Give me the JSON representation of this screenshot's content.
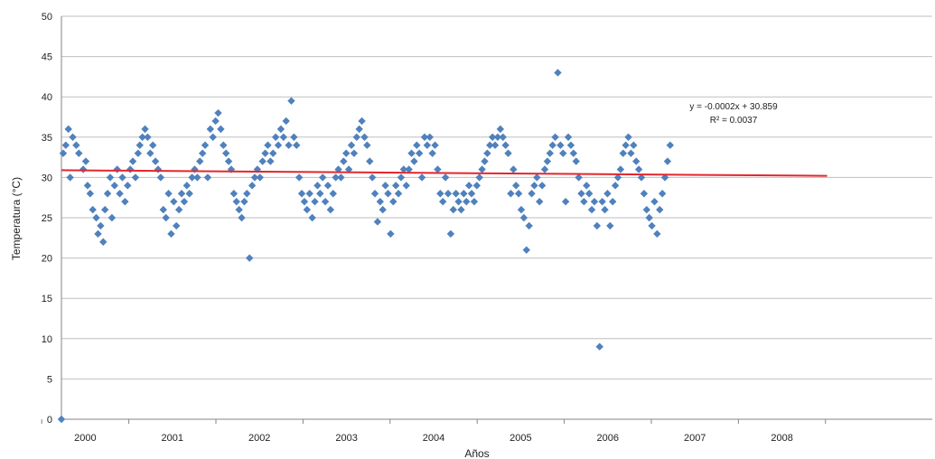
{
  "chart_data": {
    "type": "scatter",
    "title": "",
    "xlabel": "Años",
    "ylabel": "Temperatura (°C)",
    "ylim": [
      0,
      50
    ],
    "y_ticks": [
      0,
      5,
      10,
      15,
      20,
      25,
      30,
      35,
      40,
      45,
      50
    ],
    "x_tick_labels": [
      "2000",
      "2001",
      "2002",
      "2003",
      "2004",
      "2005",
      "2006",
      "2007",
      "2008"
    ],
    "x_range": [
      1999.0,
      2009.0
    ],
    "grid": "horizontal",
    "colors": {
      "points": "#4f81bd",
      "trend": "#e3262d",
      "grid": "#bfbfbf",
      "axis": "#868686"
    },
    "trendline": {
      "equation_text": "y = -0.0002x + 30.859",
      "r2_text": "R² = 0.0037",
      "start": [
        1999.0,
        30.9
      ],
      "end": [
        2008.0,
        30.2
      ]
    },
    "series": [
      {
        "points": [
          [
            1999.0,
            0
          ],
          [
            1999.02,
            33
          ],
          [
            1999.05,
            34
          ],
          [
            1999.08,
            36
          ],
          [
            1999.1,
            30
          ],
          [
            1999.13,
            35
          ],
          [
            1999.17,
            34
          ],
          [
            1999.2,
            33
          ],
          [
            1999.25,
            31
          ],
          [
            1999.28,
            32
          ],
          [
            1999.3,
            29
          ],
          [
            1999.33,
            28
          ],
          [
            1999.36,
            26
          ],
          [
            1999.4,
            25
          ],
          [
            1999.42,
            23
          ],
          [
            1999.45,
            24
          ],
          [
            1999.48,
            22
          ],
          [
            1999.5,
            26
          ],
          [
            1999.53,
            28
          ],
          [
            1999.56,
            30
          ],
          [
            1999.58,
            25
          ],
          [
            1999.61,
            29
          ],
          [
            1999.64,
            31
          ],
          [
            1999.67,
            28
          ],
          [
            1999.7,
            30
          ],
          [
            1999.73,
            27
          ],
          [
            1999.76,
            29
          ],
          [
            1999.79,
            31
          ],
          [
            1999.82,
            32
          ],
          [
            1999.85,
            30
          ],
          [
            1999.88,
            33
          ],
          [
            1999.9,
            34
          ],
          [
            1999.93,
            35
          ],
          [
            1999.96,
            36
          ],
          [
            1999.99,
            35
          ],
          [
            2000.02,
            33
          ],
          [
            2000.05,
            34
          ],
          [
            2000.08,
            32
          ],
          [
            2000.11,
            31
          ],
          [
            2000.14,
            30
          ],
          [
            2000.17,
            26
          ],
          [
            2000.2,
            25
          ],
          [
            2000.23,
            28
          ],
          [
            2000.26,
            23
          ],
          [
            2000.29,
            27
          ],
          [
            2000.32,
            24
          ],
          [
            2000.35,
            26
          ],
          [
            2000.38,
            28
          ],
          [
            2000.41,
            27
          ],
          [
            2000.44,
            29
          ],
          [
            2000.47,
            28
          ],
          [
            2000.5,
            30
          ],
          [
            2000.53,
            31
          ],
          [
            2000.56,
            30
          ],
          [
            2000.59,
            32
          ],
          [
            2000.62,
            33
          ],
          [
            2000.65,
            34
          ],
          [
            2000.68,
            30
          ],
          [
            2000.71,
            36
          ],
          [
            2000.74,
            35
          ],
          [
            2000.77,
            37
          ],
          [
            2000.8,
            38
          ],
          [
            2000.83,
            36
          ],
          [
            2000.86,
            34
          ],
          [
            2000.89,
            33
          ],
          [
            2000.92,
            32
          ],
          [
            2000.95,
            31
          ],
          [
            2000.98,
            28
          ],
          [
            2001.01,
            27
          ],
          [
            2001.04,
            26
          ],
          [
            2001.07,
            25
          ],
          [
            2001.1,
            27
          ],
          [
            2001.13,
            28
          ],
          [
            2001.16,
            20
          ],
          [
            2001.19,
            29
          ],
          [
            2001.22,
            30
          ],
          [
            2001.25,
            31
          ],
          [
            2001.28,
            30
          ],
          [
            2001.31,
            32
          ],
          [
            2001.34,
            33
          ],
          [
            2001.37,
            34
          ],
          [
            2001.4,
            32
          ],
          [
            2001.43,
            33
          ],
          [
            2001.46,
            35
          ],
          [
            2001.49,
            34
          ],
          [
            2001.52,
            36
          ],
          [
            2001.55,
            35
          ],
          [
            2001.58,
            37
          ],
          [
            2001.61,
            34
          ],
          [
            2001.64,
            39.5
          ],
          [
            2001.67,
            35
          ],
          [
            2001.7,
            34
          ],
          [
            2001.73,
            30
          ],
          [
            2001.76,
            28
          ],
          [
            2001.79,
            27
          ],
          [
            2001.82,
            26
          ],
          [
            2001.85,
            28
          ],
          [
            2001.88,
            25
          ],
          [
            2001.91,
            27
          ],
          [
            2001.94,
            29
          ],
          [
            2001.97,
            28
          ],
          [
            2002.0,
            30
          ],
          [
            2002.03,
            27
          ],
          [
            2002.06,
            29
          ],
          [
            2002.09,
            26
          ],
          [
            2002.12,
            28
          ],
          [
            2002.15,
            30
          ],
          [
            2002.18,
            31
          ],
          [
            2002.21,
            30
          ],
          [
            2002.24,
            32
          ],
          [
            2002.27,
            33
          ],
          [
            2002.3,
            31
          ],
          [
            2002.33,
            34
          ],
          [
            2002.36,
            33
          ],
          [
            2002.39,
            35
          ],
          [
            2002.42,
            36
          ],
          [
            2002.45,
            37
          ],
          [
            2002.48,
            35
          ],
          [
            2002.51,
            34
          ],
          [
            2002.54,
            32
          ],
          [
            2002.57,
            30
          ],
          [
            2002.6,
            28
          ],
          [
            2002.63,
            24.5
          ],
          [
            2002.66,
            27
          ],
          [
            2002.69,
            26
          ],
          [
            2002.72,
            29
          ],
          [
            2002.75,
            28
          ],
          [
            2002.78,
            23
          ],
          [
            2002.81,
            27
          ],
          [
            2002.84,
            29
          ],
          [
            2002.87,
            28
          ],
          [
            2002.9,
            30
          ],
          [
            2002.93,
            31
          ],
          [
            2002.96,
            29
          ],
          [
            2002.99,
            31
          ],
          [
            2003.02,
            33
          ],
          [
            2003.05,
            32
          ],
          [
            2003.08,
            34
          ],
          [
            2003.11,
            33
          ],
          [
            2003.14,
            30
          ],
          [
            2003.17,
            35
          ],
          [
            2003.2,
            34
          ],
          [
            2003.23,
            35
          ],
          [
            2003.26,
            33
          ],
          [
            2003.29,
            34
          ],
          [
            2003.32,
            31
          ],
          [
            2003.35,
            28
          ],
          [
            2003.38,
            27
          ],
          [
            2003.41,
            30
          ],
          [
            2003.44,
            28
          ],
          [
            2003.47,
            23
          ],
          [
            2003.5,
            26
          ],
          [
            2003.53,
            28
          ],
          [
            2003.56,
            27
          ],
          [
            2003.59,
            26
          ],
          [
            2003.62,
            28
          ],
          [
            2003.65,
            27
          ],
          [
            2003.68,
            29
          ],
          [
            2003.71,
            28
          ],
          [
            2003.74,
            27
          ],
          [
            2003.77,
            29
          ],
          [
            2003.8,
            30
          ],
          [
            2003.83,
            31
          ],
          [
            2003.86,
            32
          ],
          [
            2003.89,
            33
          ],
          [
            2003.92,
            34
          ],
          [
            2003.95,
            35
          ],
          [
            2003.98,
            34
          ],
          [
            2004.01,
            35
          ],
          [
            2004.04,
            36
          ],
          [
            2004.07,
            35
          ],
          [
            2004.1,
            34
          ],
          [
            2004.13,
            33
          ],
          [
            2004.16,
            28
          ],
          [
            2004.19,
            31
          ],
          [
            2004.22,
            29
          ],
          [
            2004.25,
            28
          ],
          [
            2004.28,
            26
          ],
          [
            2004.31,
            25
          ],
          [
            2004.34,
            21
          ],
          [
            2004.37,
            24
          ],
          [
            2004.4,
            28
          ],
          [
            2004.43,
            29
          ],
          [
            2004.46,
            30
          ],
          [
            2004.49,
            27
          ],
          [
            2004.52,
            29
          ],
          [
            2004.55,
            31
          ],
          [
            2004.58,
            32
          ],
          [
            2004.61,
            33
          ],
          [
            2004.64,
            34
          ],
          [
            2004.67,
            35
          ],
          [
            2004.7,
            43
          ],
          [
            2004.73,
            34
          ],
          [
            2004.76,
            33
          ],
          [
            2004.79,
            27
          ],
          [
            2004.82,
            35
          ],
          [
            2004.85,
            34
          ],
          [
            2004.88,
            33
          ],
          [
            2004.91,
            32
          ],
          [
            2004.94,
            30
          ],
          [
            2004.97,
            28
          ],
          [
            2005.0,
            27
          ],
          [
            2005.03,
            29
          ],
          [
            2005.06,
            28
          ],
          [
            2005.09,
            26
          ],
          [
            2005.12,
            27
          ],
          [
            2005.15,
            24
          ],
          [
            2005.18,
            9
          ],
          [
            2005.21,
            27
          ],
          [
            2005.24,
            26
          ],
          [
            2005.27,
            28
          ],
          [
            2005.3,
            24
          ],
          [
            2005.33,
            27
          ],
          [
            2005.36,
            29
          ],
          [
            2005.39,
            30
          ],
          [
            2005.42,
            31
          ],
          [
            2005.45,
            33
          ],
          [
            2005.48,
            34
          ],
          [
            2005.51,
            35
          ],
          [
            2005.54,
            33
          ],
          [
            2005.57,
            34
          ],
          [
            2005.6,
            32
          ],
          [
            2005.63,
            31
          ],
          [
            2005.66,
            30
          ],
          [
            2005.69,
            28
          ],
          [
            2005.72,
            26
          ],
          [
            2005.75,
            25
          ],
          [
            2005.78,
            24
          ],
          [
            2005.81,
            27
          ],
          [
            2005.84,
            23
          ],
          [
            2005.87,
            26
          ],
          [
            2005.9,
            28
          ],
          [
            2005.93,
            30
          ],
          [
            2005.96,
            32
          ],
          [
            2005.99,
            34
          ]
        ]
      }
    ]
  }
}
